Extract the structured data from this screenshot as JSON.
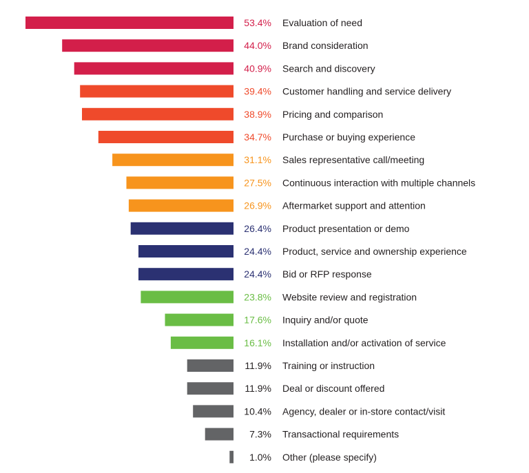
{
  "chart_data": {
    "type": "bar",
    "orientation": "horizontal",
    "title": "",
    "xlabel": "",
    "ylabel": "",
    "grid": false,
    "value_suffix": "%",
    "xlim": [
      0,
      53.4
    ],
    "categories": [
      "Evaluation of need",
      "Brand consideration",
      "Search and discovery",
      "Customer handling and service delivery",
      "Pricing and comparison",
      "Purchase or buying experience",
      "Sales representative call/meeting",
      "Continuous interaction with multiple channels",
      "Aftermarket support and attention",
      "Product presentation or demo",
      "Product, service and ownership experience",
      "Bid or RFP response",
      "Website review and registration",
      "Inquiry and/or quote",
      "Installation and/or activation of service",
      "Training or instruction",
      "Deal or discount offered",
      "Agency, dealer or in-store contact/visit",
      "Transactional requirements",
      "Other (please specify)"
    ],
    "values": [
      53.4,
      44.0,
      40.9,
      39.4,
      38.9,
      34.7,
      31.1,
      27.5,
      26.9,
      26.4,
      24.4,
      24.4,
      23.8,
      17.6,
      16.1,
      11.9,
      11.9,
      10.4,
      7.3,
      1.0
    ],
    "value_labels": [
      "53.4%",
      "44.0%",
      "40.9%",
      "39.4%",
      "38.9%",
      "34.7%",
      "31.1%",
      "27.5%",
      "26.9%",
      "26.4%",
      "24.4%",
      "24.4%",
      "23.8%",
      "17.6%",
      "16.1%",
      "11.9%",
      "11.9%",
      "10.4%",
      "7.3%",
      "1.0%"
    ],
    "colors": [
      "#d31f4a",
      "#d31f4a",
      "#d31f4a",
      "#ef4a2b",
      "#ef4a2b",
      "#ef4a2b",
      "#f7941d",
      "#f7941d",
      "#f7941d",
      "#2b3172",
      "#2b3172",
      "#2b3172",
      "#6abd45",
      "#6abd45",
      "#6abd45",
      "#636466",
      "#636466",
      "#636466",
      "#636466",
      "#636466"
    ]
  }
}
